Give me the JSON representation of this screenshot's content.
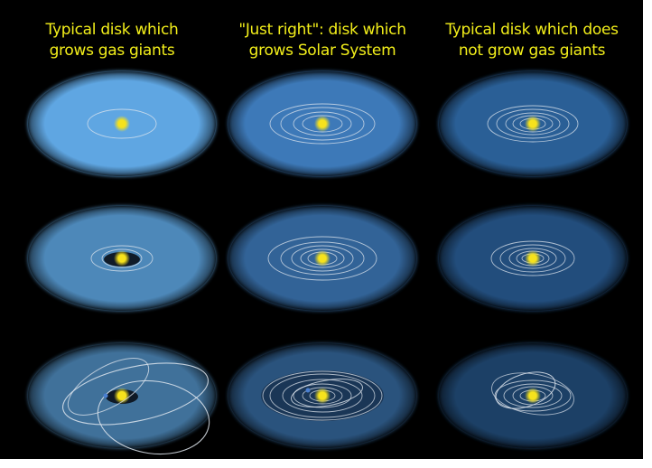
{
  "columns": [
    {
      "title_line1": "Typical disk which",
      "title_line2": "grows gas giants",
      "disk_color": "#5ea6e2"
    },
    {
      "title_line1": "\"Just right\": disk which",
      "title_line2": "grows Solar System",
      "disk_color": "#3c79b8"
    },
    {
      "title_line1": "Typical disk which does",
      "title_line2": "not grow gas giants",
      "disk_color": "#2b5f96"
    }
  ],
  "colors": {
    "background": "#000000",
    "title_text": "#f2ee1a",
    "star": "#f6e21c",
    "orbit": "#dfe6ee"
  }
}
